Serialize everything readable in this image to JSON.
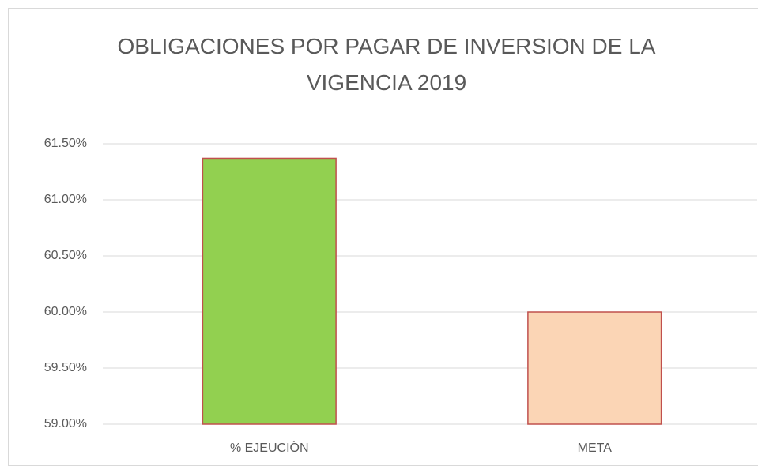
{
  "chart_data": {
    "type": "bar",
    "title": "OBLIGACIONES POR PAGAR DE INVERSION DE LA VIGENCIA 2019",
    "categories": [
      "% EJEUCIÒN",
      "META"
    ],
    "values": [
      61.37,
      60.0
    ],
    "colors": [
      "#92d050",
      "#fbd5b5"
    ],
    "edge_color": "#c0504d",
    "ylim": [
      59,
      61.5
    ],
    "yticks": [
      {
        "value": 59,
        "label": "59.00%"
      },
      {
        "value": 59.5,
        "label": "59.50%"
      },
      {
        "value": 60,
        "label": "60.00%"
      },
      {
        "value": 60.5,
        "label": "60.50%"
      },
      {
        "value": 61,
        "label": "61.00%"
      },
      {
        "value": 61.5,
        "label": "61.50%"
      }
    ],
    "grid": true
  }
}
